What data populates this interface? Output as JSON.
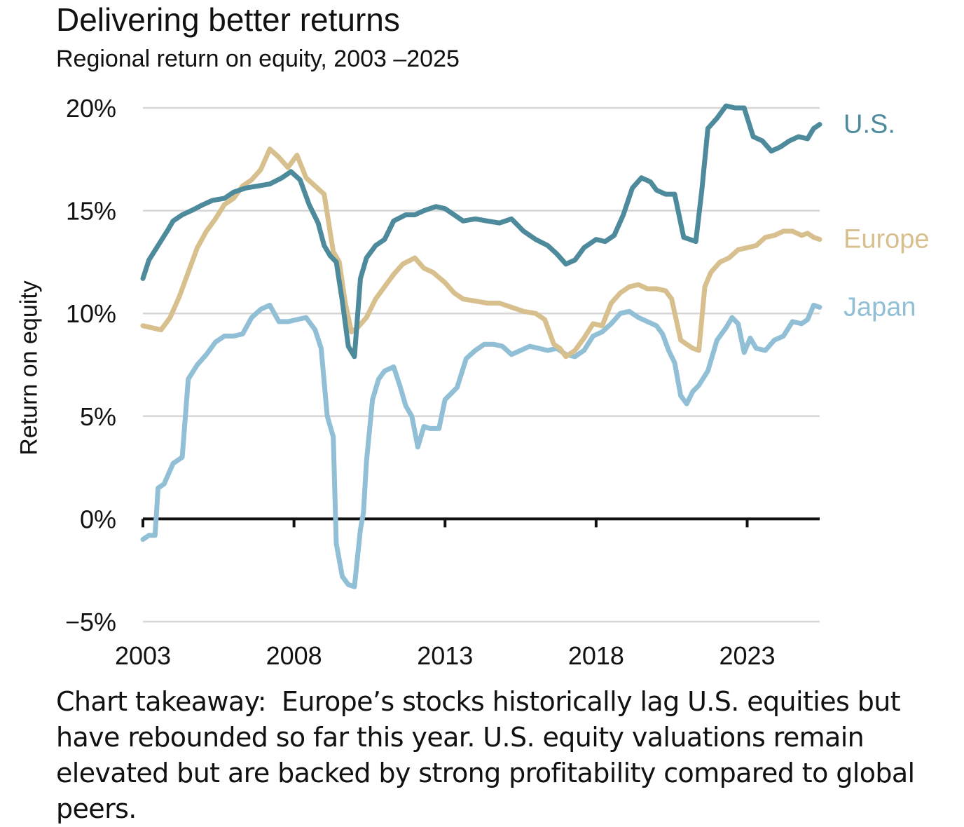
{
  "title": "Delivering better returns",
  "subtitle": "Regional return on equity, 2003 –2025",
  "takeaway": {
    "lead": "Chart takeaway:",
    "text": "Europe’s stocks historically lag U.S. equities but have rebounded so far this year. U.S. equity valuations remain elevated but are backed by strong profitability compared to global peers."
  },
  "chart_data": {
    "type": "line",
    "title": "Delivering better returns",
    "subtitle": "Regional return on equity, 2003 –2025",
    "xlabel": "",
    "ylabel": "Return on equity",
    "xlim": [
      2003,
      2025.4
    ],
    "ylim": [
      -5,
      20
    ],
    "x_ticks": [
      2003,
      2008,
      2013,
      2018,
      2023
    ],
    "x_tick_labels": [
      "2003",
      "2008",
      "2013",
      "2018",
      "2023"
    ],
    "y_ticks": [
      -5,
      0,
      5,
      10,
      15,
      20
    ],
    "y_tick_labels": [
      "−5%",
      "0%",
      "5%",
      "10%",
      "15%",
      "20%"
    ],
    "grid": true,
    "legend": "direct labels at right end of each line",
    "series": [
      {
        "name": "U.S.",
        "color": "#4d8a9c",
        "x": [
          2003.0,
          2003.2,
          2003.5,
          2003.8,
          2004.0,
          2004.3,
          2004.6,
          2005.0,
          2005.3,
          2005.7,
          2006.0,
          2006.4,
          2006.8,
          2007.2,
          2007.6,
          2007.9,
          2008.2,
          2008.5,
          2008.8,
          2009.0,
          2009.2,
          2009.4,
          2009.6,
          2009.8,
          2010.0,
          2010.2,
          2010.4,
          2010.7,
          2011.0,
          2011.3,
          2011.7,
          2012.0,
          2012.3,
          2012.7,
          2013.0,
          2013.3,
          2013.6,
          2014.0,
          2014.4,
          2014.8,
          2015.2,
          2015.6,
          2016.0,
          2016.4,
          2016.7,
          2017.0,
          2017.3,
          2017.6,
          2018.0,
          2018.3,
          2018.6,
          2018.9,
          2019.2,
          2019.5,
          2019.8,
          2020.0,
          2020.3,
          2020.6,
          2020.9,
          2021.1,
          2021.3,
          2021.5,
          2021.7,
          2022.0,
          2022.3,
          2022.6,
          2022.9,
          2023.2,
          2023.5,
          2023.8,
          2024.1,
          2024.4,
          2024.7,
          2025.0,
          2025.2,
          2025.4
        ],
        "values": [
          11.7,
          12.6,
          13.3,
          14.0,
          14.5,
          14.8,
          15.0,
          15.3,
          15.5,
          15.6,
          15.9,
          16.1,
          16.2,
          16.3,
          16.6,
          16.9,
          16.5,
          15.3,
          14.4,
          13.3,
          12.8,
          12.5,
          10.6,
          8.4,
          7.9,
          11.7,
          12.7,
          13.3,
          13.6,
          14.5,
          14.8,
          14.8,
          15.0,
          15.2,
          15.1,
          14.8,
          14.5,
          14.6,
          14.5,
          14.4,
          14.6,
          14.0,
          13.6,
          13.3,
          12.9,
          12.4,
          12.6,
          13.2,
          13.6,
          13.5,
          13.8,
          14.8,
          16.1,
          16.6,
          16.4,
          16.0,
          15.8,
          15.8,
          13.7,
          13.6,
          13.5,
          16.0,
          19.0,
          19.5,
          20.1,
          20.0,
          20.0,
          18.6,
          18.4,
          17.9,
          18.1,
          18.4,
          18.6,
          18.5,
          19.0,
          19.2
        ]
      },
      {
        "name": "Europe",
        "color": "#d8c08e",
        "x": [
          2003.0,
          2003.3,
          2003.6,
          2003.9,
          2004.2,
          2004.5,
          2004.8,
          2005.1,
          2005.4,
          2005.7,
          2006.0,
          2006.3,
          2006.6,
          2006.9,
          2007.2,
          2007.5,
          2007.8,
          2008.1,
          2008.4,
          2008.7,
          2009.0,
          2009.3,
          2009.5,
          2009.7,
          2009.9,
          2010.1,
          2010.4,
          2010.7,
          2011.0,
          2011.3,
          2011.6,
          2012.0,
          2012.3,
          2012.6,
          2013.0,
          2013.3,
          2013.6,
          2014.0,
          2014.4,
          2014.8,
          2015.2,
          2015.6,
          2016.0,
          2016.3,
          2016.6,
          2016.8,
          2017.0,
          2017.3,
          2017.6,
          2017.9,
          2018.2,
          2018.5,
          2018.8,
          2019.1,
          2019.4,
          2019.7,
          2020.0,
          2020.3,
          2020.5,
          2020.8,
          2021.0,
          2021.2,
          2021.4,
          2021.6,
          2021.8,
          2022.1,
          2022.4,
          2022.7,
          2023.0,
          2023.3,
          2023.6,
          2023.9,
          2024.2,
          2024.5,
          2024.8,
          2025.0,
          2025.2,
          2025.4
        ],
        "values": [
          9.4,
          9.3,
          9.2,
          9.8,
          10.8,
          12.0,
          13.2,
          14.0,
          14.6,
          15.3,
          15.6,
          16.2,
          16.5,
          17.0,
          18.0,
          17.6,
          17.1,
          17.7,
          16.6,
          16.2,
          15.8,
          13.0,
          12.5,
          10.5,
          9.1,
          9.3,
          9.8,
          10.7,
          11.3,
          11.9,
          12.4,
          12.7,
          12.2,
          12.0,
          11.5,
          11.0,
          10.7,
          10.6,
          10.5,
          10.5,
          10.3,
          10.1,
          10.0,
          9.7,
          8.5,
          8.3,
          7.9,
          8.2,
          8.8,
          9.5,
          9.4,
          10.5,
          11.0,
          11.3,
          11.4,
          11.2,
          11.2,
          11.1,
          10.7,
          8.7,
          8.5,
          8.3,
          8.2,
          11.3,
          12.0,
          12.5,
          12.7,
          13.1,
          13.2,
          13.3,
          13.7,
          13.8,
          14.0,
          14.0,
          13.8,
          13.9,
          13.7,
          13.6
        ]
      },
      {
        "name": "Japan",
        "color": "#91bfd6",
        "x": [
          2003.0,
          2003.2,
          2003.4,
          2003.5,
          2003.7,
          2004.0,
          2004.3,
          2004.5,
          2004.8,
          2005.1,
          2005.4,
          2005.7,
          2006.0,
          2006.3,
          2006.6,
          2006.9,
          2007.2,
          2007.5,
          2007.8,
          2008.1,
          2008.4,
          2008.7,
          2008.9,
          2009.1,
          2009.3,
          2009.4,
          2009.6,
          2009.8,
          2010.0,
          2010.2,
          2010.3,
          2010.4,
          2010.6,
          2010.8,
          2011.0,
          2011.3,
          2011.5,
          2011.7,
          2011.9,
          2012.1,
          2012.3,
          2012.5,
          2012.8,
          2013.0,
          2013.2,
          2013.4,
          2013.7,
          2014.0,
          2014.3,
          2014.6,
          2014.9,
          2015.2,
          2015.5,
          2015.8,
          2016.1,
          2016.4,
          2016.7,
          2017.0,
          2017.3,
          2017.6,
          2017.9,
          2018.2,
          2018.5,
          2018.8,
          2019.1,
          2019.4,
          2019.7,
          2020.0,
          2020.2,
          2020.4,
          2020.6,
          2020.8,
          2021.0,
          2021.2,
          2021.4,
          2021.7,
          2022.0,
          2022.3,
          2022.5,
          2022.7,
          2022.9,
          2023.1,
          2023.3,
          2023.6,
          2023.9,
          2024.2,
          2024.5,
          2024.8,
          2025.0,
          2025.2,
          2025.4
        ],
        "values": [
          -1.0,
          -0.8,
          -0.8,
          1.5,
          1.7,
          2.7,
          3.0,
          6.8,
          7.5,
          8.0,
          8.6,
          8.9,
          8.9,
          9.0,
          9.8,
          10.2,
          10.4,
          9.6,
          9.6,
          9.7,
          9.8,
          9.2,
          8.3,
          5.0,
          4.0,
          -1.2,
          -2.8,
          -3.2,
          -3.3,
          -0.5,
          0.3,
          2.8,
          5.8,
          6.8,
          7.2,
          7.4,
          6.5,
          5.5,
          5.0,
          3.5,
          4.5,
          4.4,
          4.4,
          5.8,
          6.1,
          6.4,
          7.8,
          8.2,
          8.5,
          8.5,
          8.4,
          8.0,
          8.2,
          8.4,
          8.3,
          8.2,
          8.3,
          8.0,
          7.9,
          8.2,
          8.9,
          9.1,
          9.5,
          10.0,
          10.1,
          9.8,
          9.6,
          9.4,
          9.0,
          8.2,
          7.6,
          6.0,
          5.6,
          6.2,
          6.5,
          7.2,
          8.7,
          9.3,
          9.8,
          9.5,
          8.1,
          8.8,
          8.3,
          8.2,
          8.7,
          8.9,
          9.6,
          9.5,
          9.7,
          10.4,
          10.3
        ]
      }
    ]
  }
}
